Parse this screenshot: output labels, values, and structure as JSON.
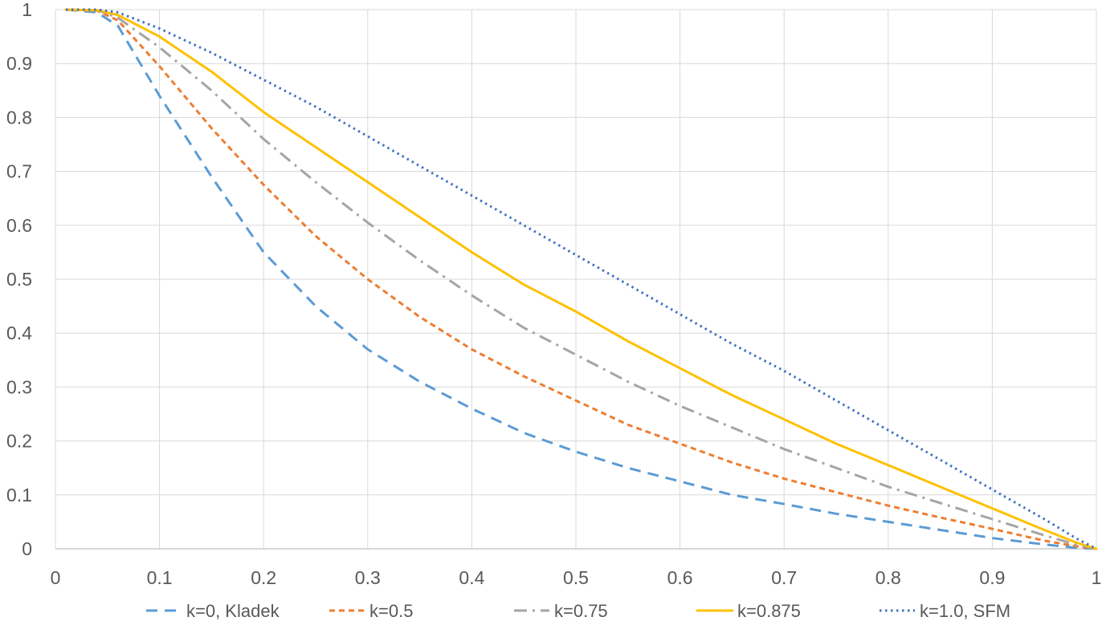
{
  "chart_data": {
    "type": "line",
    "title": "",
    "xlabel": "",
    "ylabel": "",
    "xlim": [
      0,
      1
    ],
    "ylim": [
      0,
      1
    ],
    "grid": true,
    "legend_position": "bottom",
    "x_ticks": [
      "0",
      "0.1",
      "0.2",
      "0.3",
      "0.4",
      "0.5",
      "0.6",
      "0.7",
      "0.8",
      "0.9",
      "1"
    ],
    "y_ticks": [
      "0",
      "0.1",
      "0.2",
      "0.3",
      "0.4",
      "0.5",
      "0.6",
      "0.7",
      "0.8",
      "0.9",
      "1"
    ],
    "x": [
      0.01,
      0.04,
      0.06,
      0.1,
      0.15,
      0.2,
      0.25,
      0.3,
      0.35,
      0.4,
      0.45,
      0.5,
      0.55,
      0.6,
      0.65,
      0.7,
      0.75,
      0.8,
      0.85,
      0.9,
      0.95,
      0.98,
      1.0
    ],
    "series": [
      {
        "name": "k=0, Kladek",
        "color": "#5B9BD5",
        "style": "dashed",
        "values": [
          1.0,
          0.995,
          0.97,
          0.84,
          0.69,
          0.55,
          0.45,
          0.37,
          0.31,
          0.26,
          0.215,
          0.18,
          0.15,
          0.125,
          0.1,
          0.083,
          0.065,
          0.05,
          0.035,
          0.02,
          0.008,
          0.002,
          0.0
        ]
      },
      {
        "name": "k=0.5",
        "color": "#ED7D31",
        "style": "short-dashed",
        "values": [
          1.0,
          0.998,
          0.98,
          0.895,
          0.78,
          0.675,
          0.58,
          0.5,
          0.43,
          0.37,
          0.32,
          0.275,
          0.23,
          0.195,
          0.16,
          0.13,
          0.105,
          0.08,
          0.058,
          0.037,
          0.015,
          0.005,
          0.0
        ]
      },
      {
        "name": "k=0.75",
        "color": "#A5A5A5",
        "style": "dash-dot",
        "values": [
          1.0,
          0.999,
          0.985,
          0.93,
          0.85,
          0.76,
          0.68,
          0.605,
          0.535,
          0.47,
          0.41,
          0.36,
          0.31,
          0.265,
          0.225,
          0.185,
          0.15,
          0.115,
          0.085,
          0.055,
          0.025,
          0.008,
          0.0
        ]
      },
      {
        "name": "k=0.875",
        "color": "#FFC000",
        "style": "solid",
        "values": [
          1.0,
          0.999,
          0.99,
          0.95,
          0.885,
          0.81,
          0.745,
          0.68,
          0.615,
          0.55,
          0.49,
          0.44,
          0.385,
          0.335,
          0.285,
          0.24,
          0.195,
          0.155,
          0.115,
          0.075,
          0.035,
          0.012,
          0.0
        ]
      },
      {
        "name": "k=1.0, SFM",
        "color": "#4472C4",
        "style": "dotted",
        "values": [
          1.0,
          1.0,
          0.995,
          0.965,
          0.92,
          0.87,
          0.82,
          0.765,
          0.71,
          0.655,
          0.6,
          0.545,
          0.49,
          0.435,
          0.38,
          0.33,
          0.275,
          0.22,
          0.165,
          0.11,
          0.055,
          0.02,
          0.0
        ]
      }
    ]
  }
}
